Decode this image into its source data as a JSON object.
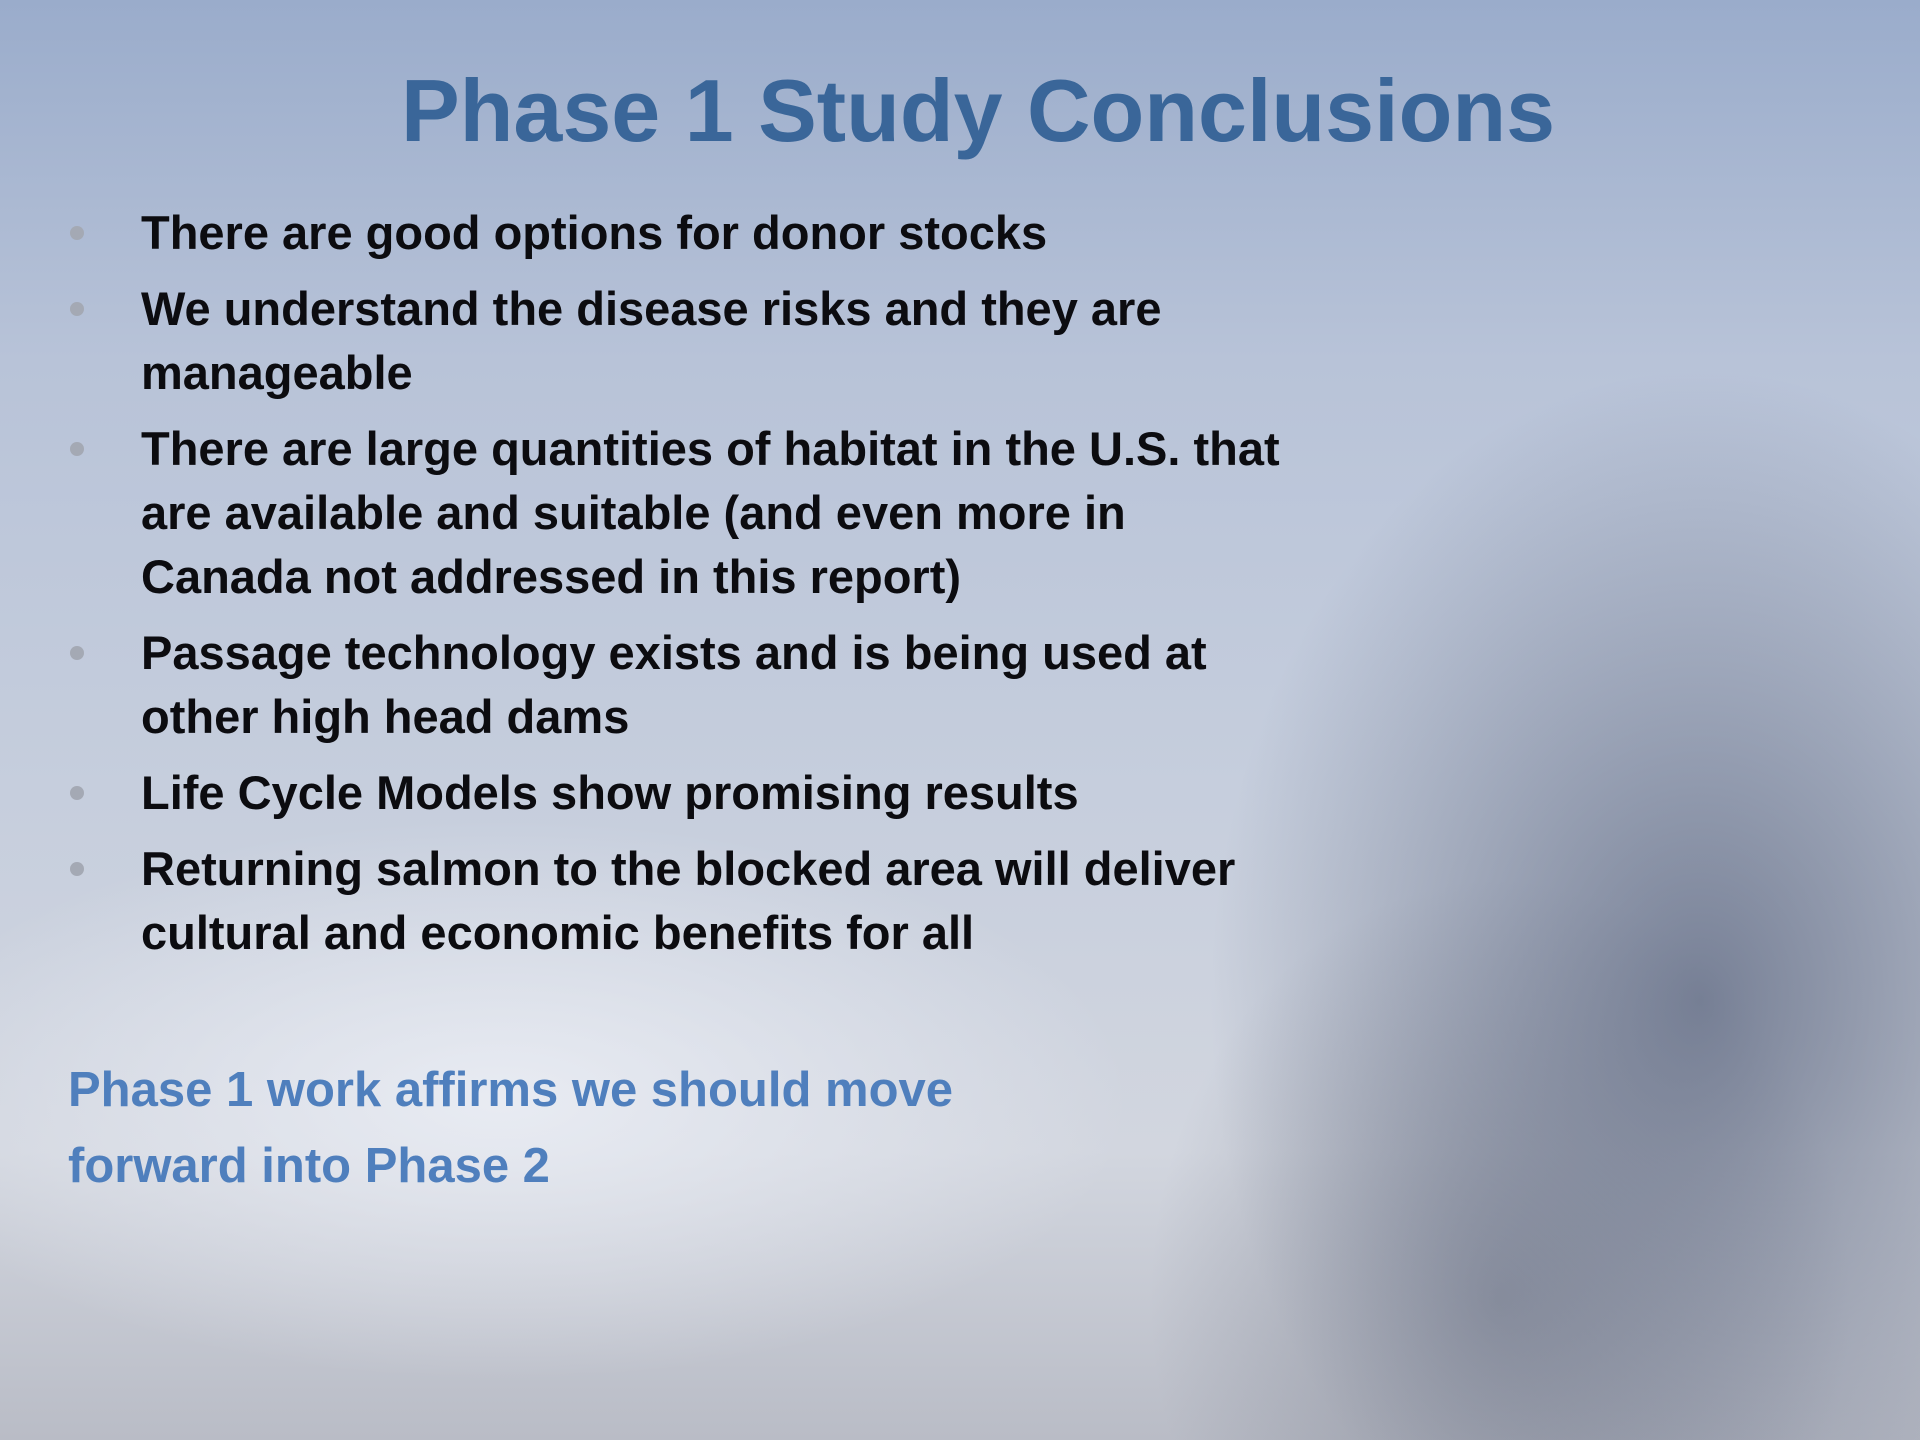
{
  "slide": {
    "title": "Phase 1 Study Conclusions",
    "bullets": [
      {
        "lines": [
          "There are good options for donor stocks"
        ]
      },
      {
        "lines": [
          "We understand the disease risks and they are",
          "manageable"
        ]
      },
      {
        "lines": [
          "There are large quantities of habitat in the U.S. that",
          "are available and suitable (and even more in",
          "Canada not addressed in this report)"
        ]
      },
      {
        "lines": [
          "Passage technology exists and is being used at",
          "other high head dams"
        ]
      },
      {
        "lines": [
          "Life Cycle Models show promising results"
        ]
      },
      {
        "lines": [
          "Returning salmon to the blocked area will deliver",
          "cultural and economic benefits for all"
        ]
      }
    ],
    "conclusion": [
      "Phase 1 work affirms we should move",
      "forward into Phase 2"
    ]
  }
}
